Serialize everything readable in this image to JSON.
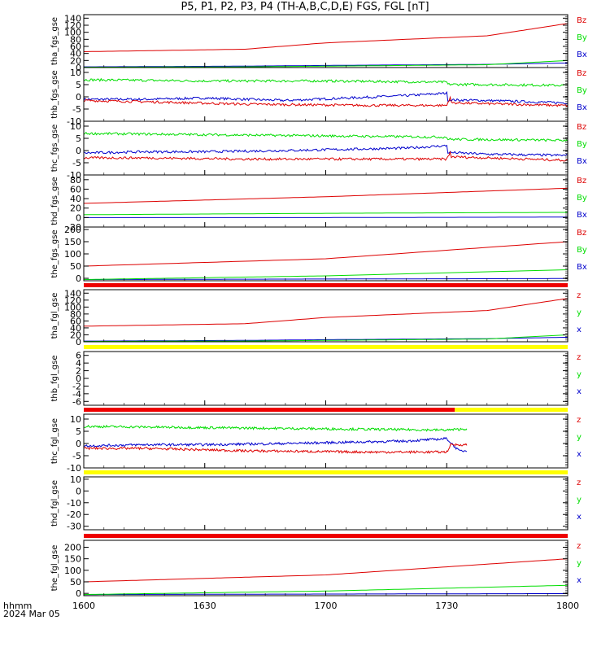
{
  "title": "P5, P1, P2, P3, P4 (TH-A,B,C,D,E) FGS, FGL [nT]",
  "footer": {
    "time_label": "hhmm",
    "date_label": "2024 Mar 05"
  },
  "colors": {
    "x": "#0000cc",
    "y": "#00dd00",
    "z": "#dd0000",
    "status_red": "#ee0000",
    "status_yellow": "#ffff00"
  },
  "chart_data": [
    {
      "type": "line",
      "ylabel": "tha_fgs_gse",
      "ylim": [
        0,
        150
      ],
      "yticks": [
        0,
        20,
        40,
        60,
        80,
        100,
        120,
        140
      ],
      "legend": [
        "Bz",
        "By",
        "Bx"
      ],
      "series": [
        {
          "name": "Bx",
          "kind": "ramp",
          "x": [
            1600,
            1640,
            1700,
            1740,
            1800
          ],
          "values": [
            2,
            4,
            6,
            9,
            13
          ]
        },
        {
          "name": "By",
          "kind": "ramp",
          "x": [
            1600,
            1640,
            1700,
            1740,
            1800
          ],
          "values": [
            1,
            2,
            4,
            8,
            20
          ]
        },
        {
          "name": "Bz",
          "kind": "ramp",
          "x": [
            1600,
            1640,
            1700,
            1740,
            1800
          ],
          "values": [
            45,
            52,
            70,
            90,
            125
          ]
        }
      ]
    },
    {
      "type": "line",
      "ylabel": "thb_fgs_gse",
      "ylim": [
        -10,
        12
      ],
      "yticks": [
        -10,
        -5,
        0,
        5,
        10
      ],
      "legend": [
        "Bz",
        "By",
        "Bx"
      ],
      "series": [
        {
          "name": "Bx",
          "kind": "noisy",
          "x": [
            1600,
            1615,
            1630,
            1650,
            1680,
            1690,
            1700,
            1720,
            1740,
            1760,
            1780,
            1800
          ],
          "values": [
            -1,
            -1,
            -0.5,
            -1.5,
            0.5,
            1.5,
            0.5,
            -1,
            -1.5,
            -2.5,
            -3,
            -2
          ]
        },
        {
          "name": "By",
          "kind": "noisy",
          "x": [
            1600,
            1630,
            1660,
            1690,
            1700,
            1740,
            1770,
            1780,
            1800
          ],
          "values": [
            7,
            6.5,
            6.5,
            6,
            5.5,
            5,
            4.5,
            4,
            6
          ]
        },
        {
          "name": "Bz",
          "kind": "noisy",
          "x": [
            1600,
            1615,
            1640,
            1670,
            1690,
            1691,
            1720,
            1770,
            1780,
            1781,
            1800
          ],
          "values": [
            -1.5,
            -2,
            -3,
            -3.5,
            -3.5,
            0.5,
            -2,
            -4,
            -4.5,
            -2,
            -1.5
          ]
        }
      ]
    },
    {
      "type": "line",
      "ylabel": "thc_fgs_gse",
      "ylim": [
        -10,
        12
      ],
      "yticks": [
        -10,
        -5,
        0,
        5,
        10
      ],
      "legend": [
        "Bz",
        "By",
        "Bx"
      ],
      "series": [
        {
          "name": "Bx",
          "kind": "noisy",
          "x": [
            1600,
            1615,
            1630,
            1650,
            1680,
            1690,
            1700,
            1720,
            1740,
            1760,
            1780,
            1800
          ],
          "values": [
            -1,
            -0.5,
            -0.5,
            0,
            1,
            2,
            0.5,
            0,
            -1.5,
            -2,
            -3,
            -2
          ]
        },
        {
          "name": "By",
          "kind": "noisy",
          "x": [
            1600,
            1630,
            1660,
            1690,
            1700,
            1740,
            1770,
            1780,
            1800
          ],
          "values": [
            7,
            6.5,
            6,
            5.5,
            5,
            4.5,
            4,
            3.5,
            6
          ]
        },
        {
          "name": "Bz",
          "kind": "noisy",
          "x": [
            1600,
            1615,
            1640,
            1670,
            1690,
            1691,
            1720,
            1770,
            1780,
            1781,
            1800
          ],
          "values": [
            -3,
            -3,
            -3.5,
            -3.5,
            -3.5,
            -0.5,
            -2,
            -4.5,
            -6,
            -4,
            -3
          ]
        }
      ]
    },
    {
      "type": "line",
      "ylabel": "thd_fgs_gse",
      "ylim": [
        -20,
        90
      ],
      "yticks": [
        -20,
        0,
        20,
        40,
        60,
        80
      ],
      "legend": [
        "Bz",
        "By",
        "Bx"
      ],
      "series": [
        {
          "name": "Bx",
          "kind": "ramp",
          "x": [
            1600,
            1700,
            1800
          ],
          "values": [
            0,
            0,
            1
          ]
        },
        {
          "name": "By",
          "kind": "ramp",
          "x": [
            1600,
            1700,
            1800
          ],
          "values": [
            6,
            9,
            11
          ]
        },
        {
          "name": "Bz",
          "kind": "ramp",
          "x": [
            1600,
            1700,
            1800
          ],
          "values": [
            30,
            44,
            62
          ]
        }
      ]
    },
    {
      "type": "line",
      "ylabel": "the_fgs_gse",
      "ylim": [
        -10,
        210
      ],
      "yticks": [
        0,
        50,
        100,
        150,
        200
      ],
      "legend": [
        "Bz",
        "By",
        "Bx"
      ],
      "series": [
        {
          "name": "Bx",
          "kind": "ramp",
          "x": [
            1600,
            1700,
            1800
          ],
          "values": [
            -5,
            -3,
            -1
          ]
        },
        {
          "name": "By",
          "kind": "ramp",
          "x": [
            1600,
            1700,
            1800
          ],
          "values": [
            -5,
            10,
            35
          ]
        },
        {
          "name": "Bz",
          "kind": "ramp",
          "x": [
            1600,
            1700,
            1800
          ],
          "values": [
            50,
            80,
            150
          ]
        }
      ]
    },
    {
      "type": "line",
      "ylabel": "tha_fgl_gse",
      "ylim": [
        0,
        150
      ],
      "yticks": [
        0,
        20,
        40,
        60,
        80,
        100,
        120,
        140
      ],
      "legend": [
        "z",
        "y",
        "x"
      ],
      "status": [
        {
          "from": 1600,
          "to": 1800,
          "color": "red"
        }
      ],
      "series": [
        {
          "name": "x",
          "kind": "ramp",
          "x": [
            1600,
            1640,
            1700,
            1740,
            1800
          ],
          "values": [
            2,
            4,
            6,
            9,
            13
          ]
        },
        {
          "name": "y",
          "kind": "ramp",
          "x": [
            1600,
            1640,
            1700,
            1740,
            1800
          ],
          "values": [
            1,
            2,
            4,
            8,
            20
          ]
        },
        {
          "name": "z",
          "kind": "ramp",
          "x": [
            1600,
            1640,
            1700,
            1740,
            1800
          ],
          "values": [
            45,
            52,
            70,
            90,
            125
          ]
        }
      ]
    },
    {
      "type": "line",
      "ylabel": "thb_fgl_gse",
      "ylim": [
        -7,
        7
      ],
      "yticks": [
        -6,
        -4,
        -2,
        0,
        2,
        4,
        6
      ],
      "legend": [
        "z",
        "y",
        "x"
      ],
      "status": [
        {
          "from": 1600,
          "to": 1800,
          "color": "yellow"
        }
      ],
      "series": []
    },
    {
      "type": "line",
      "ylabel": "thc_fgl_gse",
      "ylim": [
        -10,
        12
      ],
      "yticks": [
        -10,
        -5,
        0,
        5,
        10
      ],
      "legend": [
        "z",
        "y",
        "x"
      ],
      "status": [
        {
          "from": 1600,
          "to": 1692,
          "color": "red"
        },
        {
          "from": 1692,
          "to": 1800,
          "color": "yellow"
        }
      ],
      "series": [
        {
          "name": "x",
          "kind": "noisy",
          "x": [
            1600,
            1615,
            1630,
            1650,
            1680,
            1690,
            1693,
            1695
          ],
          "values": [
            -1,
            -0.5,
            -0.5,
            0,
            1,
            2,
            -3,
            -3
          ]
        },
        {
          "name": "y",
          "kind": "noisy",
          "x": [
            1600,
            1630,
            1660,
            1690,
            1695
          ],
          "values": [
            7,
            6.5,
            6,
            5.5,
            6
          ]
        },
        {
          "name": "z",
          "kind": "noisy",
          "x": [
            1600,
            1615,
            1640,
            1670,
            1690,
            1691,
            1695
          ],
          "values": [
            -2,
            -2,
            -3,
            -3.5,
            -3.5,
            -0.5,
            -0.5
          ]
        }
      ]
    },
    {
      "type": "line",
      "ylabel": "thd_fgl_gse",
      "ylim": [
        -33,
        12
      ],
      "yticks": [
        -30,
        -20,
        -10,
        0,
        10
      ],
      "legend": [
        "z",
        "y",
        "x"
      ],
      "status": [
        {
          "from": 1600,
          "to": 1800,
          "color": "yellow"
        }
      ],
      "series": []
    },
    {
      "type": "line",
      "ylabel": "the_fgl_gse",
      "ylim": [
        -10,
        230
      ],
      "yticks": [
        0,
        50,
        100,
        150,
        200
      ],
      "legend": [
        "z",
        "y",
        "x"
      ],
      "status": [
        {
          "from": 1600,
          "to": 1800,
          "color": "red"
        }
      ],
      "series": [
        {
          "name": "x",
          "kind": "ramp",
          "x": [
            1600,
            1700,
            1800
          ],
          "values": [
            -5,
            -3,
            -1
          ]
        },
        {
          "name": "y",
          "kind": "ramp",
          "x": [
            1600,
            1700,
            1800
          ],
          "values": [
            -5,
            10,
            35
          ]
        },
        {
          "name": "z",
          "kind": "ramp",
          "x": [
            1600,
            1700,
            1800
          ],
          "values": [
            50,
            80,
            150
          ]
        }
      ]
    }
  ],
  "x_axis": {
    "range": [
      1600,
      1800
    ],
    "ticks": [
      1600,
      1630,
      1700,
      1730,
      1800
    ],
    "tick_labels": [
      "1600",
      "1630",
      "1700",
      "1730",
      "1800"
    ]
  }
}
